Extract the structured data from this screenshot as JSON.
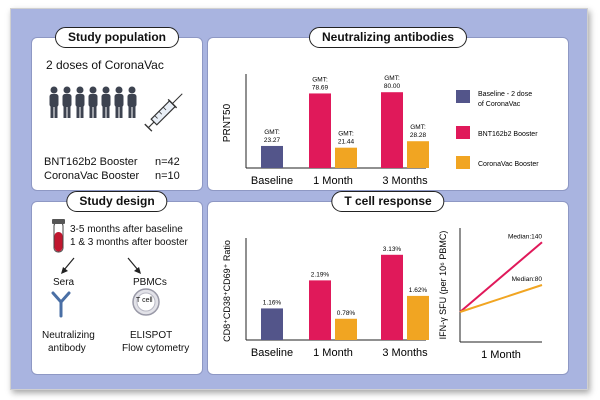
{
  "study_population": {
    "title": "Study population",
    "doses": "2 doses of CoronaVac",
    "bnt_label": "BNT162b2 Booster",
    "bnt_n": "n=42",
    "corona_label": "CoronaVac Booster",
    "corona_n": "n=10"
  },
  "study_design": {
    "title": "Study design",
    "timing_1": "3-5 months after baseline",
    "timing_2": "1 & 3 months after booster",
    "sera": "Sera",
    "pbmcs": "PBMCs",
    "tcell": "T cell",
    "neutralizing_1": "Neutralizing",
    "neutralizing_2": "antibody",
    "elispot": "ELISPOT",
    "flow": "Flow cytometry"
  },
  "legend": {
    "baseline_1": "Baseline - 2 dose",
    "baseline_2": "of CoronaVac",
    "bnt": "BNT162b2 Booster",
    "corona": "CoronaVac Booster"
  },
  "colors": {
    "baseline": "#53558a",
    "bnt": "#e0195a",
    "corona": "#f1a522",
    "frame": "#a9b4e0"
  },
  "icons": [
    "person-icon",
    "syringe-icon",
    "blood-tube-icon",
    "antibody-icon",
    "t-cell-icon",
    "arrow-icon"
  ],
  "chart_data": [
    {
      "type": "bar",
      "title": "Neutralizing antibodies",
      "ylabel": "PRNT50",
      "categories": [
        "Baseline",
        "1 Month",
        "3 Months"
      ],
      "ylim": [
        0,
        95
      ],
      "series": [
        {
          "name": "Baseline - 2 dose of CoronaVac",
          "values": [
            23.27,
            null,
            null
          ],
          "labels": [
            "GMT:\n23.27",
            "",
            ""
          ]
        },
        {
          "name": "BNT162b2 Booster",
          "values": [
            null,
            78.69,
            80.0
          ],
          "labels": [
            "",
            "GMT:\n78.69",
            "GMT:\n80.00"
          ]
        },
        {
          "name": "CoronaVac Booster",
          "values": [
            null,
            21.44,
            28.28
          ],
          "labels": [
            "",
            "GMT:\n21.44",
            "GMT:\n28.28"
          ]
        }
      ]
    },
    {
      "type": "bar",
      "title": "T cell response",
      "ylabel": "CD8⁺CD38⁺CD69⁺ Ratio",
      "categories": [
        "Baseline",
        "1 Month",
        "3 Months"
      ],
      "ylim": [
        0,
        3.6
      ],
      "series": [
        {
          "name": "Baseline - 2 dose of CoronaVac",
          "values": [
            1.16,
            null,
            null
          ],
          "labels": [
            "1.16%",
            "",
            ""
          ]
        },
        {
          "name": "BNT162b2 Booster",
          "values": [
            null,
            2.19,
            3.13
          ],
          "labels": [
            "",
            "2.19%",
            "3.13%"
          ]
        },
        {
          "name": "CoronaVac Booster",
          "values": [
            null,
            0.78,
            1.62
          ],
          "labels": [
            "",
            "0.78%",
            "1.62%"
          ]
        }
      ]
    },
    {
      "type": "line",
      "ylabel": "IFN-γ SFU (per 10⁶ PBMC)",
      "categories": [
        "1 Month"
      ],
      "series": [
        {
          "name": "BNT162b2 Booster",
          "label": "Median:140",
          "values": [
            140
          ]
        },
        {
          "name": "CoronaVac Booster",
          "label": "Median:80",
          "values": [
            80
          ]
        }
      ]
    }
  ]
}
